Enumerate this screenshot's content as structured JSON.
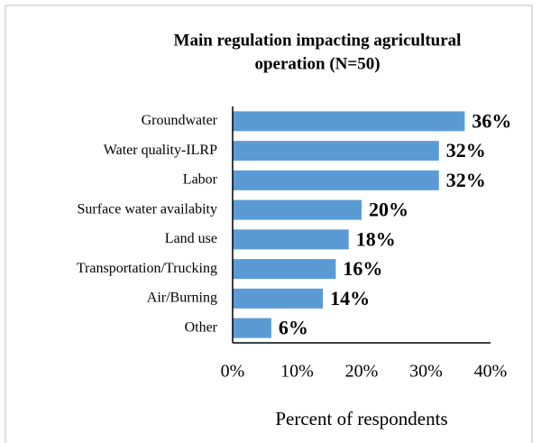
{
  "chart_data": {
    "type": "bar",
    "orientation": "horizontal",
    "title": [
      "Main regulation impacting agricultural",
      "operation (N=50)"
    ],
    "x_label": "Percent of respondents",
    "categories": [
      "Groundwater",
      "Water quality-ILRP",
      "Labor",
      "Surface water availabity",
      "Land use",
      "Transportation/Trucking",
      "Air/Burning",
      "Other"
    ],
    "values": [
      36,
      32,
      32,
      20,
      18,
      16,
      14,
      6
    ],
    "value_labels": [
      "36%",
      "32%",
      "32%",
      "20%",
      "18%",
      "16%",
      "14%",
      "6%"
    ],
    "color": "#5b9bd5",
    "xlim": [
      0,
      40
    ],
    "xticks": [
      {
        "value": 0,
        "label": "0%"
      },
      {
        "value": 10,
        "label": "10%"
      },
      {
        "value": 20,
        "label": "20%"
      },
      {
        "value": 30,
        "label": "30%"
      },
      {
        "value": 40,
        "label": "40%"
      }
    ],
    "grid": false
  }
}
